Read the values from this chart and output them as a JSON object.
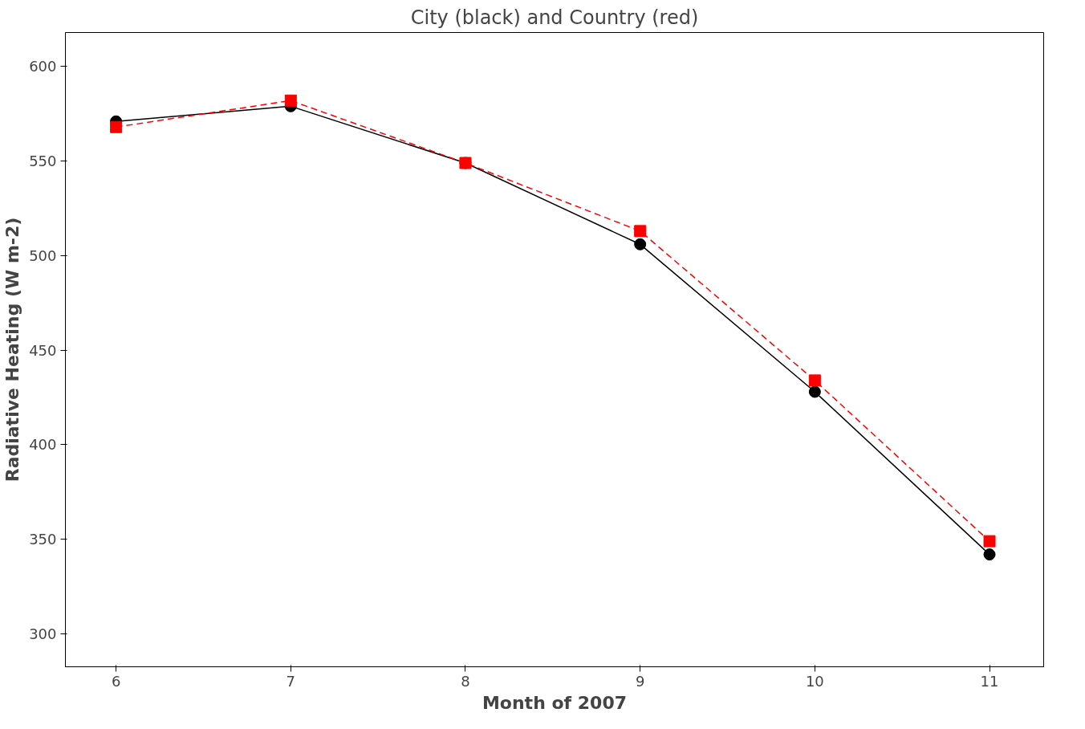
{
  "chart_data": {
    "type": "line",
    "title": "City (black) and Country (red)",
    "xlabel": "Month of 2007",
    "ylabel": "Radiative Heating (W m-2)",
    "x": [
      6,
      7,
      8,
      9,
      10,
      11
    ],
    "series": [
      {
        "color": "#000000",
        "marker": "circle",
        "line_style": "solid",
        "values": [
          571,
          579,
          549,
          506,
          428,
          342
        ]
      },
      {
        "color": "#ff0000",
        "marker": "square",
        "line_style": "dashed",
        "values": [
          568,
          582,
          549,
          513,
          434,
          349
        ]
      }
    ],
    "xlim": [
      5.71,
      11.31
    ],
    "ylim": [
      282.6,
      618
    ],
    "xticks": [
      6,
      7,
      8,
      9,
      10,
      11
    ],
    "yticks": [
      300,
      350,
      400,
      450,
      500,
      550,
      600
    ],
    "grid": false
  }
}
